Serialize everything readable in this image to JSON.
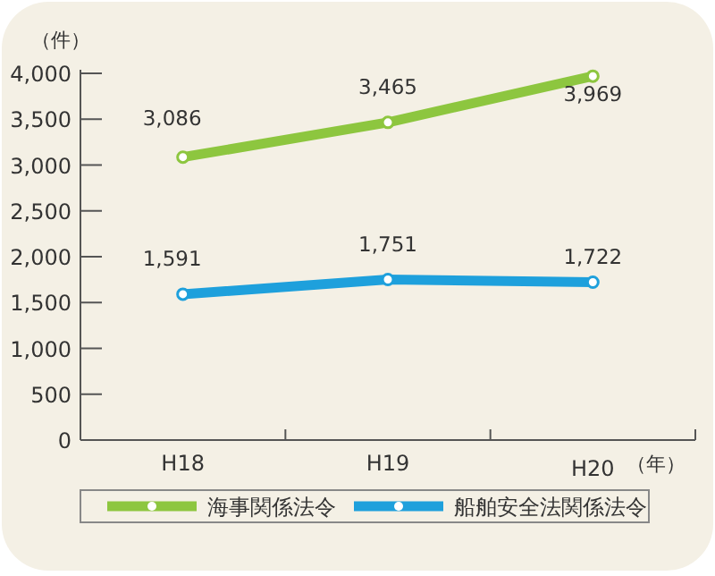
{
  "chart_data": {
    "type": "line",
    "ylabel": "（件）",
    "xlabel": "（年）",
    "categories": [
      "H18",
      "H19",
      "H20"
    ],
    "series": [
      {
        "name": "海事関係法令",
        "color": "#8dc63f",
        "values": [
          3086,
          3465,
          3969
        ],
        "value_labels": [
          "3,086",
          "3,465",
          "3,969"
        ]
      },
      {
        "name": "船舶安全法関係法令",
        "color": "#1ea0dc",
        "values": [
          1591,
          1751,
          1722
        ],
        "value_labels": [
          "1,591",
          "1,751",
          "1,722"
        ]
      }
    ],
    "ylim": [
      0,
      4000
    ],
    "yticks": [
      {
        "value": 0,
        "label": "0"
      },
      {
        "value": 500,
        "label": "500"
      },
      {
        "value": 1000,
        "label": "1,000"
      },
      {
        "value": 1500,
        "label": "1,500"
      },
      {
        "value": 2000,
        "label": "2,000"
      },
      {
        "value": 2500,
        "label": "2,500"
      },
      {
        "value": 3000,
        "label": "3,000"
      },
      {
        "value": 3500,
        "label": "3,500"
      },
      {
        "value": 4000,
        "label": "4,000"
      }
    ],
    "marker": "circle",
    "legend": "bottom",
    "grid": false
  }
}
